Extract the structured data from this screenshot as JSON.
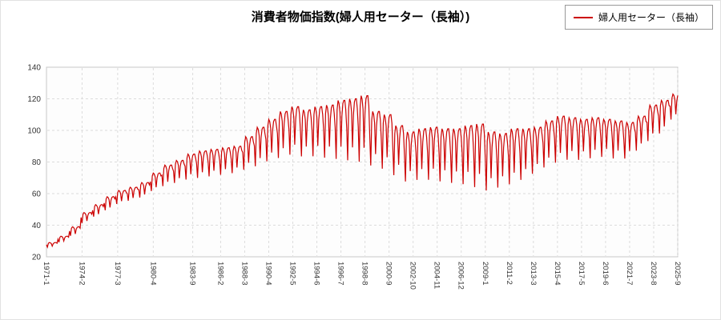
{
  "title": "消費者物価指数(婦人用セーター（長袖）)",
  "legend": {
    "label": "婦人用セーター（長袖）"
  },
  "chart_data": {
    "type": "line",
    "title": "消費者物価指数(婦人用セーター（長袖）)",
    "xlabel": "",
    "ylabel": "",
    "ylim": [
      20,
      140
    ],
    "yticks": [
      20,
      40,
      60,
      80,
      100,
      120,
      140
    ],
    "grid": true,
    "legend_position": "top-right",
    "x_start": "1971-01",
    "x_end": "2025-09",
    "xtick_labels": [
      "1971-1",
      "1974-2",
      "1977-3",
      "1980-4",
      "1983-9",
      "1986-2",
      "1988-3",
      "1990-4",
      "1992-5",
      "1994-6",
      "1996-7",
      "1998-8",
      "2000-9",
      "2002-10",
      "2004-11",
      "2006-12",
      "2009-1",
      "2011-2",
      "2013-3",
      "2015-4",
      "2017-5",
      "2019-6",
      "2021-7",
      "2023-8",
      "2025-9"
    ],
    "seasonal_fractions": [
      0.55,
      0.05,
      0.85,
      1.0,
      0.95,
      0.8,
      0.25,
      0.75,
      0.95,
      1.0,
      1.0,
      0.85
    ],
    "series": [
      {
        "name": "婦人用セーター（長袖）",
        "color": "#cc0000",
        "years": [
          1971,
          1972,
          1973,
          1974,
          1975,
          1976,
          1977,
          1978,
          1979,
          1980,
          1981,
          1982,
          1983,
          1984,
          1985,
          1986,
          1987,
          1988,
          1989,
          1990,
          1991,
          1992,
          1993,
          1994,
          1995,
          1996,
          1997,
          1998,
          1999,
          2000,
          2001,
          2002,
          2003,
          2004,
          2005,
          2006,
          2007,
          2008,
          2009,
          2010,
          2011,
          2012,
          2013,
          2014,
          2015,
          2016,
          2017,
          2018,
          2019,
          2020,
          2021,
          2022,
          2023,
          2024,
          2025
        ],
        "yearly_high": [
          29,
          33,
          39,
          48,
          53,
          58,
          62,
          64,
          67,
          73,
          78,
          81,
          85,
          87,
          88,
          89,
          90,
          96,
          102,
          107,
          112,
          115,
          113,
          115,
          116,
          119,
          120,
          122,
          112,
          110,
          103,
          99,
          101,
          102,
          101,
          101,
          103,
          104,
          99,
          98,
          101,
          101,
          102,
          106,
          109,
          108,
          107,
          108,
          107,
          106,
          105,
          109,
          116,
          119,
          123
        ],
        "yearly_low": [
          26,
          29,
          33,
          41,
          45,
          49,
          53,
          55,
          57,
          61,
          64,
          66,
          68,
          69,
          70,
          71,
          72,
          74,
          76,
          79,
          81,
          83,
          82,
          82,
          81,
          80,
          79,
          78,
          76,
          74,
          70,
          66,
          67,
          67,
          66,
          65,
          64,
          62,
          60,
          62,
          64,
          67,
          71,
          75,
          78,
          80,
          80,
          81,
          82,
          81,
          81,
          86,
          92,
          97,
          106
        ]
      }
    ]
  }
}
